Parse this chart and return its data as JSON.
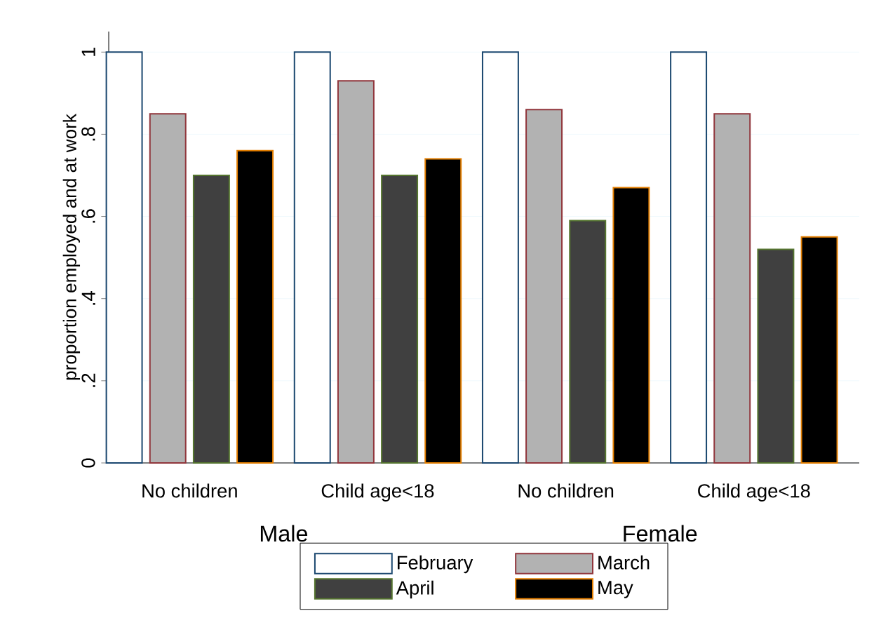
{
  "chart_data": {
    "type": "bar",
    "ylabel": "proportion employed and at work",
    "categories": [
      "No children",
      "Child age<18",
      "No children",
      "Child age<18"
    ],
    "annotations": [
      "Male",
      "Female"
    ],
    "series": [
      {
        "name": "February",
        "color": "#ffffff",
        "values": [
          1,
          1,
          1,
          1
        ]
      },
      {
        "name": "March",
        "color": "#b2b2b2",
        "values": [
          0.85,
          0.93,
          0.86,
          0.85
        ]
      },
      {
        "name": "April",
        "color": "#404040",
        "values": [
          0.7,
          0.7,
          0.59,
          0.52
        ]
      },
      {
        "name": "May",
        "color": "#000000",
        "values": [
          0.76,
          0.74,
          0.67,
          0.55
        ]
      }
    ],
    "ylim": [
      0,
      1.05
    ],
    "yticks": [
      0,
      {
        "value": 0.2,
        "label": ".2"
      },
      {
        "value": 0.4,
        "label": ".4"
      },
      {
        "value": 0.6,
        "label": ".6"
      },
      {
        "value": 0.8,
        "label": ".8"
      },
      1
    ],
    "grid": "y",
    "legend": "bottom"
  }
}
